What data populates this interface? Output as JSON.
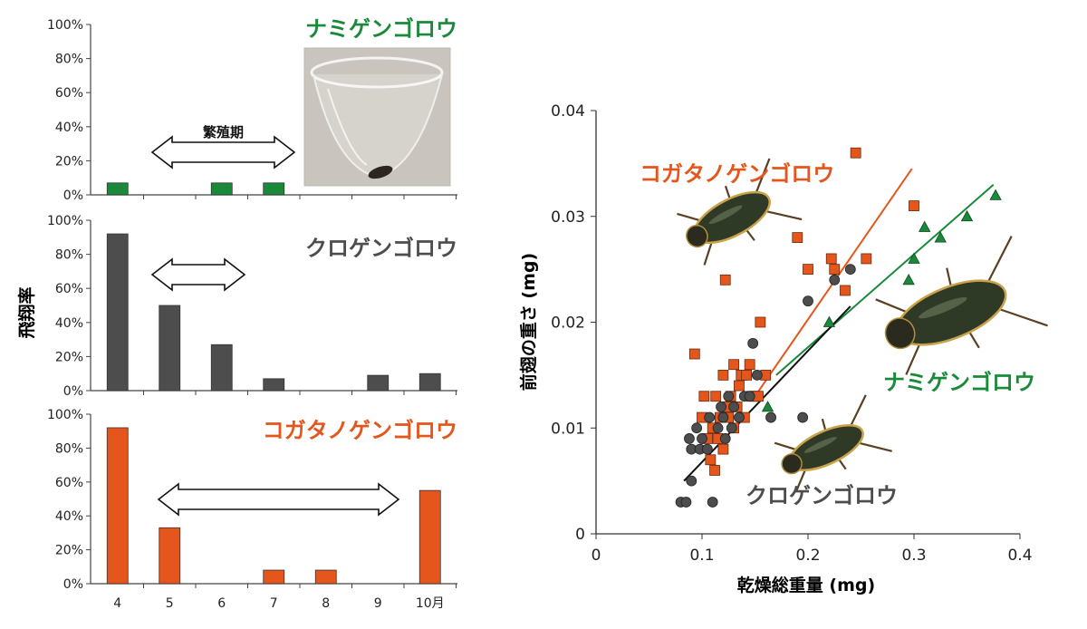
{
  "colors": {
    "green": "#1a8a3a",
    "gray": "#4d4d4d",
    "orange": "#e4561c",
    "black": "#111111"
  },
  "chart_data": [
    {
      "type": "bar",
      "panel": "top",
      "title": "ナミゲンゴロウ",
      "ylabel": "飛翔率",
      "ylim": [
        0,
        100
      ],
      "yticks": [
        "0%",
        "20%",
        "40%",
        "60%",
        "80%",
        "100%"
      ],
      "categories": [
        "4",
        "5",
        "6",
        "7",
        "8",
        "9",
        "10月"
      ],
      "values": [
        7,
        0,
        7,
        7,
        0,
        0,
        0
      ],
      "color": "#1a8a3a",
      "arrow_label": "繁殖期",
      "arrow_range": [
        "5",
        "7"
      ],
      "photo": true
    },
    {
      "type": "bar",
      "panel": "middle",
      "title": "クロゲンゴロウ",
      "ylim": [
        0,
        100
      ],
      "yticks": [
        "0%",
        "20%",
        "40%",
        "60%",
        "80%",
        "100%"
      ],
      "categories": [
        "4",
        "5",
        "6",
        "7",
        "8",
        "9",
        "10月"
      ],
      "values": [
        92,
        50,
        27,
        7,
        0,
        9,
        10
      ],
      "color": "#4d4d4d",
      "arrow_range": [
        "5",
        "6"
      ]
    },
    {
      "type": "bar",
      "panel": "bottom",
      "title": "コガタノゲンゴロウ",
      "ylim": [
        0,
        100
      ],
      "yticks": [
        "0%",
        "20%",
        "40%",
        "60%",
        "80%",
        "100%"
      ],
      "categories": [
        "4",
        "5",
        "6",
        "7",
        "8",
        "9",
        "10月"
      ],
      "values": [
        92,
        33,
        0,
        8,
        8,
        0,
        55
      ],
      "color": "#e4561c",
      "arrow_range": [
        "5",
        "9"
      ]
    },
    {
      "type": "scatter",
      "xlabel": "乾燥総重量 (mg)",
      "ylabel": "前翅の重さ (mg)",
      "xlim": [
        0,
        0.4
      ],
      "ylim": [
        0,
        0.04
      ],
      "xticks": [
        "0",
        "0.1",
        "0.2",
        "0.3",
        "0.4"
      ],
      "yticks": [
        "0",
        "0.01",
        "0.02",
        "0.03",
        "0.04"
      ],
      "series": [
        {
          "name": "コガタノゲンゴロウ",
          "marker": "square",
          "color": "#e4561c",
          "points": [
            [
              0.093,
              0.017
            ],
            [
              0.1,
              0.011
            ],
            [
              0.102,
              0.013
            ],
            [
              0.105,
              0.009
            ],
            [
              0.108,
              0.007
            ],
            [
              0.11,
              0.01
            ],
            [
              0.112,
              0.006
            ],
            [
              0.113,
              0.013
            ],
            [
              0.115,
              0.009
            ],
            [
              0.117,
              0.011
            ],
            [
              0.12,
              0.015
            ],
            [
              0.12,
              0.008
            ],
            [
              0.122,
              0.024
            ],
            [
              0.123,
              0.012
            ],
            [
              0.125,
              0.011
            ],
            [
              0.127,
              0.013
            ],
            [
              0.13,
              0.016
            ],
            [
              0.13,
              0.01
            ],
            [
              0.133,
              0.012
            ],
            [
              0.135,
              0.014
            ],
            [
              0.137,
              0.015
            ],
            [
              0.14,
              0.011
            ],
            [
              0.142,
              0.015
            ],
            [
              0.145,
              0.016
            ],
            [
              0.147,
              0.013
            ],
            [
              0.15,
              0.013
            ],
            [
              0.153,
              0.013
            ],
            [
              0.155,
              0.02
            ],
            [
              0.16,
              0.015
            ],
            [
              0.19,
              0.028
            ],
            [
              0.2,
              0.025
            ],
            [
              0.222,
              0.026
            ],
            [
              0.225,
              0.025
            ],
            [
              0.235,
              0.023
            ],
            [
              0.245,
              0.036
            ],
            [
              0.255,
              0.026
            ],
            [
              0.3,
              0.031
            ]
          ]
        },
        {
          "name": "クロゲンゴロウ",
          "marker": "circle",
          "color": "#4d4d4d",
          "points": [
            [
              0.08,
              0.003
            ],
            [
              0.085,
              0.003
            ],
            [
              0.088,
              0.009
            ],
            [
              0.09,
              0.008
            ],
            [
              0.09,
              0.005
            ],
            [
              0.095,
              0.01
            ],
            [
              0.098,
              0.008
            ],
            [
              0.1,
              0.009
            ],
            [
              0.105,
              0.008
            ],
            [
              0.107,
              0.011
            ],
            [
              0.11,
              0.003
            ],
            [
              0.115,
              0.01
            ],
            [
              0.118,
              0.012
            ],
            [
              0.12,
              0.011
            ],
            [
              0.122,
              0.009
            ],
            [
              0.125,
              0.013
            ],
            [
              0.128,
              0.01
            ],
            [
              0.13,
              0.012
            ],
            [
              0.135,
              0.011
            ],
            [
              0.14,
              0.013
            ],
            [
              0.145,
              0.013
            ],
            [
              0.148,
              0.018
            ],
            [
              0.152,
              0.015
            ],
            [
              0.165,
              0.011
            ],
            [
              0.195,
              0.011
            ],
            [
              0.2,
              0.022
            ],
            [
              0.225,
              0.024
            ],
            [
              0.24,
              0.025
            ]
          ]
        },
        {
          "name": "ナミゲンゴロウ",
          "marker": "triangle",
          "color": "#1a8a3a",
          "points": [
            [
              0.162,
              0.012
            ],
            [
              0.22,
              0.02
            ],
            [
              0.295,
              0.024
            ],
            [
              0.3,
              0.026
            ],
            [
              0.31,
              0.029
            ],
            [
              0.325,
              0.028
            ],
            [
              0.35,
              0.03
            ],
            [
              0.377,
              0.032
            ]
          ]
        }
      ],
      "fit_lines": [
        {
          "series": "コガタノゲンゴロウ",
          "color": "#e4561c",
          "from": [
            0.15,
            0.013
          ],
          "to": [
            0.298,
            0.0345
          ]
        },
        {
          "series": "ナミゲンゴロウ",
          "color": "#1a8a3a",
          "from": [
            0.17,
            0.015
          ],
          "to": [
            0.375,
            0.033
          ]
        },
        {
          "series": "クロゲンゴロウ",
          "color": "#111111",
          "from": [
            0.083,
            0.005
          ],
          "to": [
            0.24,
            0.0215
          ]
        }
      ]
    }
  ]
}
